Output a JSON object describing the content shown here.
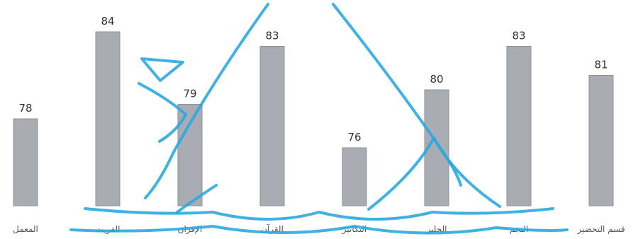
{
  "chart_data": {
    "type": "bar",
    "categories": [
      "المعمل",
      "الفريت",
      "الإقران",
      "القرآن",
      "التكاثير",
      "الحلير",
      "النجم",
      "قسم التحضير"
    ],
    "values": [
      78,
      84,
      79,
      83,
      76,
      80,
      83,
      81
    ],
    "value_labels": [
      "78",
      "84",
      "79",
      "83",
      "76",
      "80",
      "83",
      "81"
    ],
    "title": "",
    "xlabel": "",
    "ylabel": "",
    "ylim": [
      70,
      85
    ],
    "grid": false,
    "legend": "none",
    "colors": {
      "bar": "#a9adb3",
      "bar_edge": "#8e9298",
      "watermark": "#2aa8e0"
    }
  }
}
